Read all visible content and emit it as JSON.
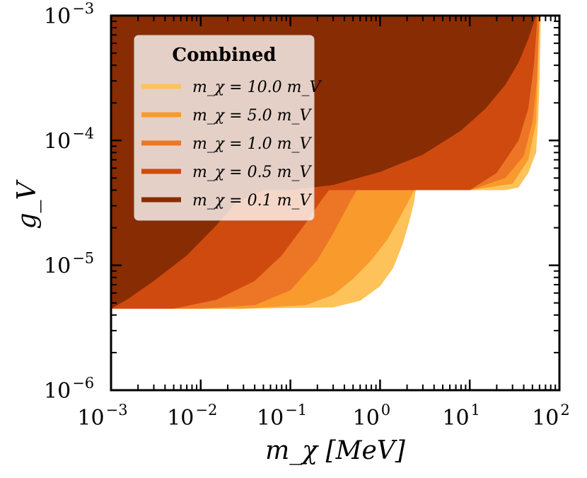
{
  "chart_data": {
    "type": "area",
    "title": "",
    "xlabel": "m_χ [MeV]",
    "ylabel": "g_V",
    "xscale": "log",
    "yscale": "log",
    "xlim": [
      0.001,
      100
    ],
    "ylim": [
      1e-06,
      0.001
    ],
    "x_ticks": [
      {
        "value": 0.001,
        "base": "10",
        "exp": "−3"
      },
      {
        "value": 0.01,
        "base": "10",
        "exp": "−2"
      },
      {
        "value": 0.1,
        "base": "10",
        "exp": "−1"
      },
      {
        "value": 1,
        "base": "10",
        "exp": "0"
      },
      {
        "value": 10,
        "base": "10",
        "exp": "1"
      },
      {
        "value": 100,
        "base": "10",
        "exp": "2"
      }
    ],
    "y_ticks": [
      {
        "value": 1e-06,
        "base": "10",
        "exp": "−6"
      },
      {
        "value": 1e-05,
        "base": "10",
        "exp": "−5"
      },
      {
        "value": 0.0001,
        "base": "10",
        "exp": "−4"
      },
      {
        "value": 0.001,
        "base": "10",
        "exp": "−3"
      }
    ],
    "legend": {
      "title": "Combined",
      "location": "upper left",
      "entries": [
        "m_χ = 10.0 m_V",
        "m_χ = 5.0 m_V",
        "m_χ = 1.0 m_V",
        "m_χ = 0.5 m_V",
        "m_χ = 0.1 m_V"
      ]
    },
    "series": [
      {
        "name": "m_χ = 10.0 m_V",
        "color": "#FDC35A",
        "boundary_x": [
          0.001,
          0.03,
          0.3,
          0.6,
          1.0,
          1.4,
          1.8,
          2.1,
          2.4,
          2.5,
          3,
          10,
          25,
          35,
          45,
          55,
          58,
          60,
          62
        ],
        "boundary_y": [
          4.5e-06,
          4.5e-06,
          4.6e-06,
          5.2e-06,
          6.8e-06,
          9.5e-06,
          1.5e-05,
          2.2e-05,
          3.2e-05,
          4e-05,
          4e-05,
          4e-05,
          4e-05,
          4.2e-05,
          5.5e-05,
          8e-05,
          0.00015,
          0.0003,
          0.001
        ]
      },
      {
        "name": "m_χ = 5.0 m_V",
        "color": "#F99A2D",
        "boundary_x": [
          0.001,
          0.03,
          0.15,
          0.3,
          0.5,
          0.8,
          1.2,
          1.6,
          2.0,
          2.4,
          2.5,
          10,
          30,
          45,
          55,
          60
        ],
        "boundary_y": [
          4.5e-06,
          4.5e-06,
          4.8e-06,
          5.8e-06,
          7.8e-06,
          1.1e-05,
          1.6e-05,
          2.3e-05,
          3.1e-05,
          4e-05,
          4e-05,
          4e-05,
          4.5e-05,
          7e-05,
          0.00014,
          0.001
        ]
      },
      {
        "name": "m_χ = 1.0 m_V",
        "color": "#EC7626",
        "boundary_x": [
          0.001,
          0.01,
          0.04,
          0.1,
          0.2,
          0.3,
          0.45,
          0.55,
          10,
          25,
          40,
          50,
          56,
          60
        ],
        "boundary_y": [
          4.5e-06,
          4.5e-06,
          4.8e-06,
          6.3e-06,
          1.1e-05,
          1.8e-05,
          3.1e-05,
          4e-05,
          4e-05,
          5e-05,
          7.5e-05,
          0.00014,
          0.0003,
          0.001
        ]
      },
      {
        "name": "m_χ = 0.5 m_V",
        "color": "#CF4A0F",
        "boundary_x": [
          0.001,
          0.005,
          0.015,
          0.04,
          0.08,
          0.15,
          0.22,
          0.27,
          10,
          20,
          35,
          45,
          52,
          57
        ],
        "boundary_y": [
          4.5e-06,
          4.5e-06,
          5.3e-06,
          7.5e-06,
          1.2e-05,
          2.2e-05,
          3.3e-05,
          4e-05,
          4e-05,
          5.5e-05,
          0.0001,
          0.00018,
          0.0004,
          0.001
        ]
      },
      {
        "name": "m_χ = 0.1 m_V",
        "color": "#882C04",
        "boundary_x": [
          0.001,
          0.0015,
          0.003,
          0.007,
          0.015,
          0.025,
          0.05,
          0.1,
          0.3,
          1,
          3,
          8,
          15,
          25,
          35,
          45,
          55
        ],
        "boundary_y": [
          4.5e-06,
          5.3e-06,
          7.5e-06,
          1.2e-05,
          2.1e-05,
          3.2e-05,
          4e-05,
          4e-05,
          4.4e-05,
          5.6e-05,
          7.7e-05,
          0.00012,
          0.00018,
          0.00028,
          0.00042,
          0.00065,
          0.001
        ]
      }
    ]
  }
}
